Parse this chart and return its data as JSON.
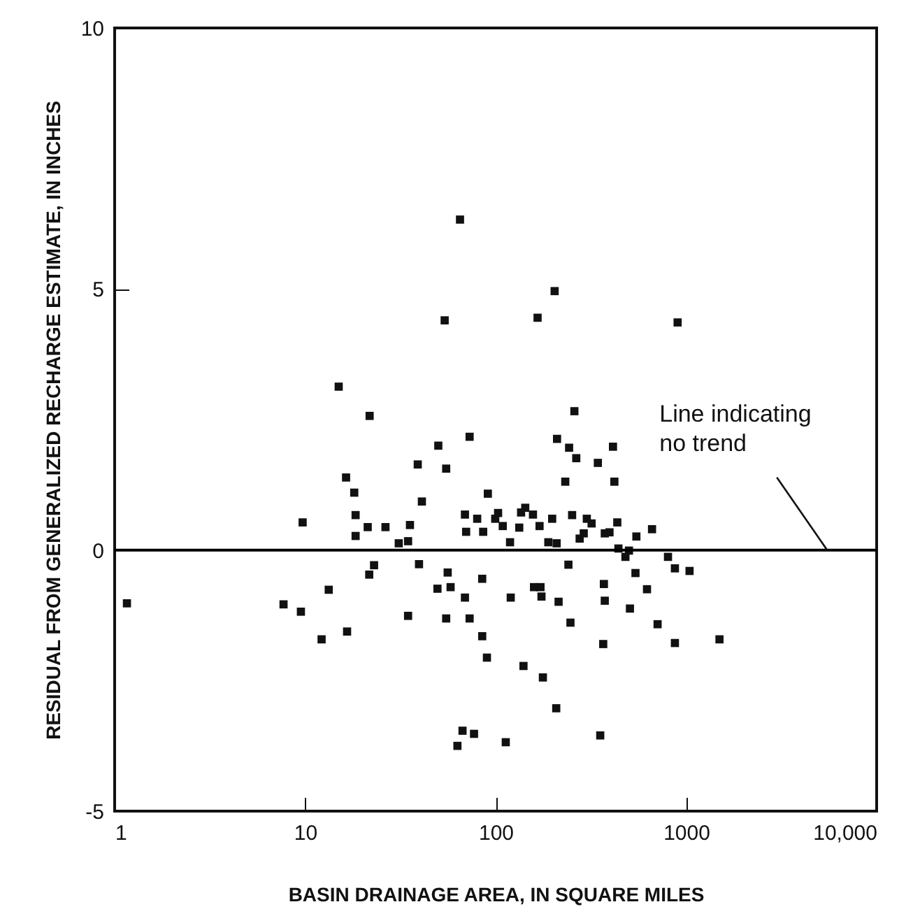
{
  "chart_data": {
    "type": "scatter",
    "xlabel": "BASIN DRAINAGE AREA, IN SQUARE MILES",
    "ylabel": "RESIDUAL FROM GENERALIZED RECHARGE ESTIMATE, IN INCHES",
    "log": "x",
    "marker": "square",
    "xlim": [
      1,
      10000
    ],
    "ylim": [
      -5,
      10
    ],
    "xticks": [
      1,
      10,
      100,
      1000,
      {
        "value": 10000,
        "label": "10,000"
      }
    ],
    "yticks": [
      -5,
      0,
      5,
      10
    ],
    "ref_lines": [
      {
        "axis": "y",
        "value": 0,
        "color": "#000000"
      }
    ],
    "annotations": [
      {
        "text": "Line indicating\nno trend",
        "x": 5500,
        "y": 0
      }
    ],
    "series": [
      {
        "color": "#111111",
        "x": [
          65,
          54,
          15,
          21.8,
          73,
          50,
          39,
          55,
          16.4,
          18.1,
          91,
          41,
          9.7,
          18.4,
          69,
          80,
          99.5,
          21.3,
          26.4,
          35.5,
          18.4,
          70,
          86,
          31,
          34.7,
          23,
          39.6,
          56,
          204,
          166,
          902,
          259,
          210,
          243,
          265,
          344,
          413,
          232,
          420,
          103,
          109,
          119,
          133,
          136,
          143,
          157,
          170,
          189,
          209,
          198,
          252,
          276,
          290,
          301,
          319,
          374,
          396,
          435,
          548,
          662,
          441,
          501,
          480,
          803,
          241,
          873,
          1042,
          1.16,
          7.7,
          9.5,
          12.2,
          13.3,
          16.6,
          21.7,
          34.7,
          49.5,
          58,
          55,
          69,
          73,
          85,
          85,
          90,
          67,
          77,
          63,
          120,
          159,
          172,
          174,
          214,
          247,
          140,
          177,
          208,
          113,
          354,
          370,
          374,
          367,
          507,
          542,
          623,
          708,
          873,
          1496
        ],
        "values": [
          6.33,
          4.4,
          3.13,
          2.57,
          2.17,
          2.0,
          1.64,
          1.56,
          1.39,
          1.1,
          1.08,
          0.93,
          0.53,
          0.67,
          0.68,
          0.6,
          0.6,
          0.44,
          0.44,
          0.48,
          0.27,
          0.35,
          0.35,
          0.13,
          0.17,
          -0.29,
          -0.27,
          -0.43,
          4.96,
          4.45,
          4.36,
          2.66,
          2.13,
          1.96,
          1.76,
          1.67,
          1.98,
          1.31,
          1.31,
          0.71,
          0.46,
          0.15,
          0.43,
          0.72,
          0.81,
          0.68,
          0.46,
          0.15,
          0.13,
          0.6,
          0.67,
          0.22,
          0.32,
          0.6,
          0.51,
          0.32,
          0.34,
          0.53,
          0.26,
          0.4,
          0.03,
          -0.01,
          -0.13,
          -0.13,
          -0.28,
          -0.35,
          -0.4,
          -1.02,
          -1.04,
          -1.18,
          -1.71,
          -0.76,
          -1.56,
          -0.47,
          -1.26,
          -0.74,
          -0.71,
          -1.31,
          -0.91,
          -1.31,
          -0.55,
          -1.65,
          -2.06,
          -3.46,
          -3.52,
          -3.75,
          -0.91,
          -0.71,
          -0.71,
          -0.89,
          -0.99,
          -1.39,
          -2.22,
          -2.44,
          -3.03,
          -3.68,
          -3.55,
          -0.65,
          -0.97,
          -1.8,
          -1.12,
          -0.44,
          -0.75,
          -1.42,
          -1.78,
          -1.71
        ]
      }
    ]
  }
}
